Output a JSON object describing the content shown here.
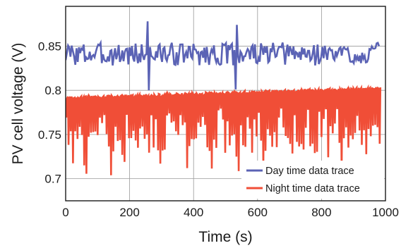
{
  "chart_data": {
    "type": "line",
    "xlabel": "Time (s)",
    "ylabel": "PV cell voltage (V)",
    "xlim": [
      0,
      1000
    ],
    "ylim": [
      0.675,
      0.895
    ],
    "x_ticks": [
      0,
      200,
      400,
      600,
      800,
      1000
    ],
    "x_tick_labels": [
      "0",
      "200",
      "400",
      "600",
      "800",
      "1000"
    ],
    "y_ticks": [
      0.7,
      0.75,
      0.8,
      0.85
    ],
    "y_tick_labels": [
      "0.7",
      "0.75",
      "0.8",
      "0.85"
    ],
    "grid": true,
    "legend_position": "bottom-right",
    "series": [
      {
        "name": "Day time data trace",
        "color": "#5b63b5",
        "x": [
          0,
          20,
          40,
          60,
          80,
          100,
          120,
          140,
          160,
          180,
          200,
          220,
          240,
          255,
          258,
          262,
          280,
          300,
          320,
          340,
          360,
          380,
          400,
          420,
          440,
          460,
          480,
          500,
          520,
          530,
          535,
          540,
          560,
          580,
          600,
          620,
          640,
          660,
          680,
          700,
          720,
          740,
          760,
          780,
          800,
          820,
          840,
          860,
          880,
          900,
          920,
          940,
          960,
          980
        ],
        "values": [
          0.842,
          0.836,
          0.848,
          0.84,
          0.834,
          0.846,
          0.841,
          0.838,
          0.845,
          0.84,
          0.835,
          0.847,
          0.842,
          0.878,
          0.8,
          0.844,
          0.838,
          0.846,
          0.84,
          0.836,
          0.848,
          0.841,
          0.837,
          0.845,
          0.842,
          0.835,
          0.846,
          0.84,
          0.838,
          0.801,
          0.874,
          0.842,
          0.836,
          0.847,
          0.841,
          0.838,
          0.845,
          0.84,
          0.834,
          0.846,
          0.842,
          0.837,
          0.845,
          0.84,
          0.836,
          0.847,
          0.841,
          0.838,
          0.844,
          0.84,
          0.835,
          0.846,
          0.842,
          0.838
        ]
      },
      {
        "name": "Night time data trace",
        "color": "#f04e37",
        "x": [
          0,
          20,
          40,
          60,
          80,
          100,
          120,
          140,
          160,
          180,
          200,
          220,
          240,
          260,
          280,
          300,
          320,
          340,
          360,
          380,
          400,
          420,
          440,
          460,
          480,
          500,
          520,
          540,
          560,
          580,
          600,
          620,
          640,
          660,
          680,
          700,
          720,
          740,
          760,
          780,
          800,
          820,
          840,
          860,
          880,
          900,
          920,
          940,
          960,
          980
        ],
        "values": [
          0.793,
          0.76,
          0.795,
          0.742,
          0.794,
          0.77,
          0.795,
          0.735,
          0.793,
          0.758,
          0.795,
          0.745,
          0.794,
          0.765,
          0.796,
          0.74,
          0.795,
          0.768,
          0.795,
          0.745,
          0.796,
          0.76,
          0.796,
          0.74,
          0.797,
          0.763,
          0.797,
          0.745,
          0.797,
          0.766,
          0.798,
          0.742,
          0.798,
          0.768,
          0.8,
          0.75,
          0.8,
          0.762,
          0.801,
          0.748,
          0.801,
          0.765,
          0.802,
          0.745,
          0.802,
          0.768,
          0.803,
          0.748,
          0.803,
          0.77
        ],
        "min_envelope_approx": 0.725
      }
    ]
  }
}
